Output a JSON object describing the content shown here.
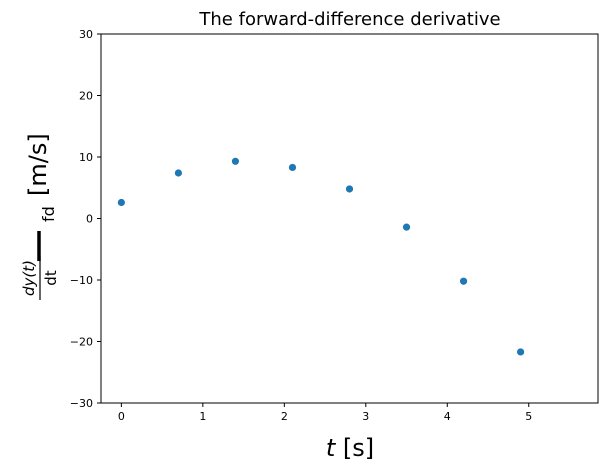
{
  "chart_data": {
    "type": "scatter",
    "title": "The forward-difference derivative",
    "xlabel": {
      "var": "t",
      "unit": "[s]"
    },
    "ylabel": {
      "num": "dy(t)",
      "den": "dt",
      "sub": "fd",
      "unit": "[m/s]"
    },
    "xlim": [
      -0.25,
      5.85
    ],
    "ylim": [
      -30,
      30
    ],
    "xticks": [
      0,
      1,
      2,
      3,
      4,
      5
    ],
    "yticks": [
      -30,
      -20,
      -10,
      0,
      10,
      20,
      30
    ],
    "tick_labels_x": [
      "0",
      "1",
      "2",
      "3",
      "4",
      "5"
    ],
    "tick_labels_y": [
      "−30",
      "−20",
      "−10",
      "0",
      "10",
      "20",
      "30"
    ],
    "grid": false,
    "marker_color": "#1f77b4",
    "points": [
      {
        "x": 0.0,
        "y": 2.6
      },
      {
        "x": 0.7,
        "y": 7.4
      },
      {
        "x": 1.4,
        "y": 9.3
      },
      {
        "x": 2.1,
        "y": 8.3
      },
      {
        "x": 2.8,
        "y": 4.8
      },
      {
        "x": 3.5,
        "y": -1.4
      },
      {
        "x": 4.2,
        "y": -10.2
      },
      {
        "x": 4.9,
        "y": -21.7
      }
    ]
  }
}
